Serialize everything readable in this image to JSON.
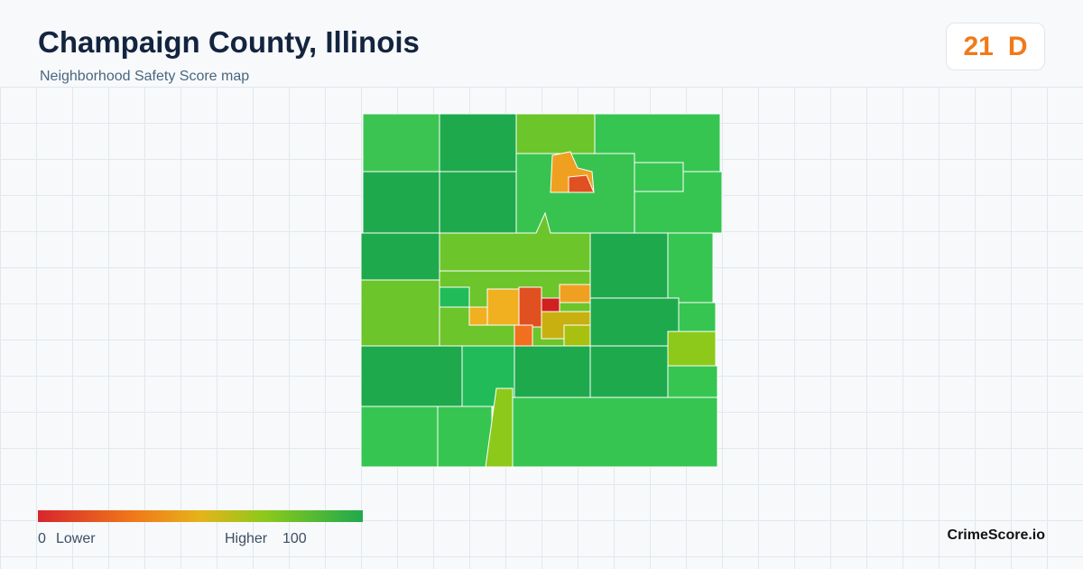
{
  "header": {
    "title": "Champaign County, Illinois",
    "subtitle": "Neighborhood Safety Score map"
  },
  "score": {
    "value": 21,
    "grade": "D"
  },
  "legend": {
    "min": 0,
    "min_label": "Lower",
    "max_label": "Higher",
    "max": 100
  },
  "footer": {
    "brand": "CrimeScore.io"
  }
}
